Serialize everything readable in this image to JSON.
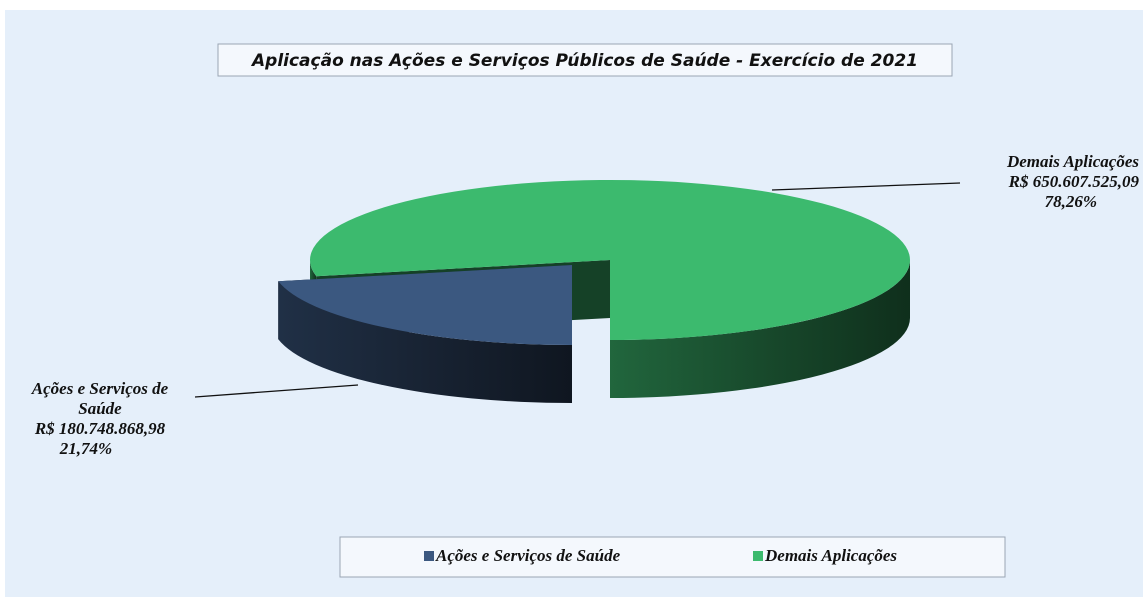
{
  "chart_data": {
    "type": "pie",
    "title": "Aplicação nas Ações e Serviços Públicos de Saúde - Exercício de 2021",
    "categories": [
      "Ações e Serviços de Saúde",
      "Demais Aplicações"
    ],
    "values": [
      21.74,
      78.26
    ],
    "value_labels": [
      "21,74%",
      "78,26%"
    ],
    "amounts": [
      180748868.98,
      650607525.09
    ],
    "amount_labels": [
      "R$ 180.748.868,98",
      "R$ 650.607.525,09"
    ],
    "colors": [
      "#3b5880",
      "#3cba6e"
    ],
    "legend": "bottom"
  }
}
